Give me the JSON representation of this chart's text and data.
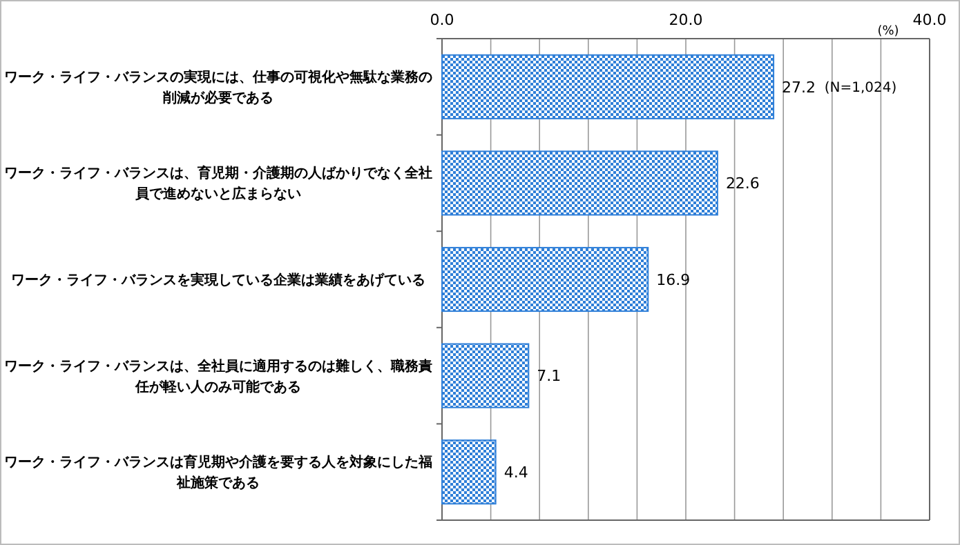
{
  "chart_data": {
    "type": "bar",
    "orientation": "horizontal",
    "categories": [
      "ワーク・ライフ・バランスの実現には、仕事の可視化や無駄な業務の削減が必要である",
      "ワーク・ライフ・バランスは、育児期・介護期の人ばかりでなく全社員で進めないと広まらない",
      "ワーク・ライフ・バランスを実現している企業は業績をあげている",
      "ワーク・ライフ・バランスは、全社員に適用するのは難しく、職務責任が軽い人のみ可能である",
      "ワーク・ライフ・バランスは育児期や介護を要する人を対象にした福祉施策である"
    ],
    "values": [
      27.2,
      22.6,
      16.9,
      7.1,
      4.4
    ],
    "color": "#2f7fd8",
    "xlabel": "(%)",
    "xlim": [
      0,
      40
    ],
    "xticks": [
      {
        "value": 0,
        "label": "0.0"
      },
      {
        "value": 4,
        "label": null
      },
      {
        "value": 8,
        "label": null
      },
      {
        "value": 12,
        "label": null
      },
      {
        "value": 16,
        "label": null
      },
      {
        "value": 20,
        "label": "20.0"
      },
      {
        "value": 24,
        "label": null
      },
      {
        "value": 28,
        "label": null
      },
      {
        "value": 32,
        "label": null
      },
      {
        "value": 36,
        "label": null
      },
      {
        "value": 40,
        "label": "40.0"
      }
    ],
    "grid": "x",
    "data_labels": true,
    "annotations": [
      "(N=1,024)"
    ]
  }
}
